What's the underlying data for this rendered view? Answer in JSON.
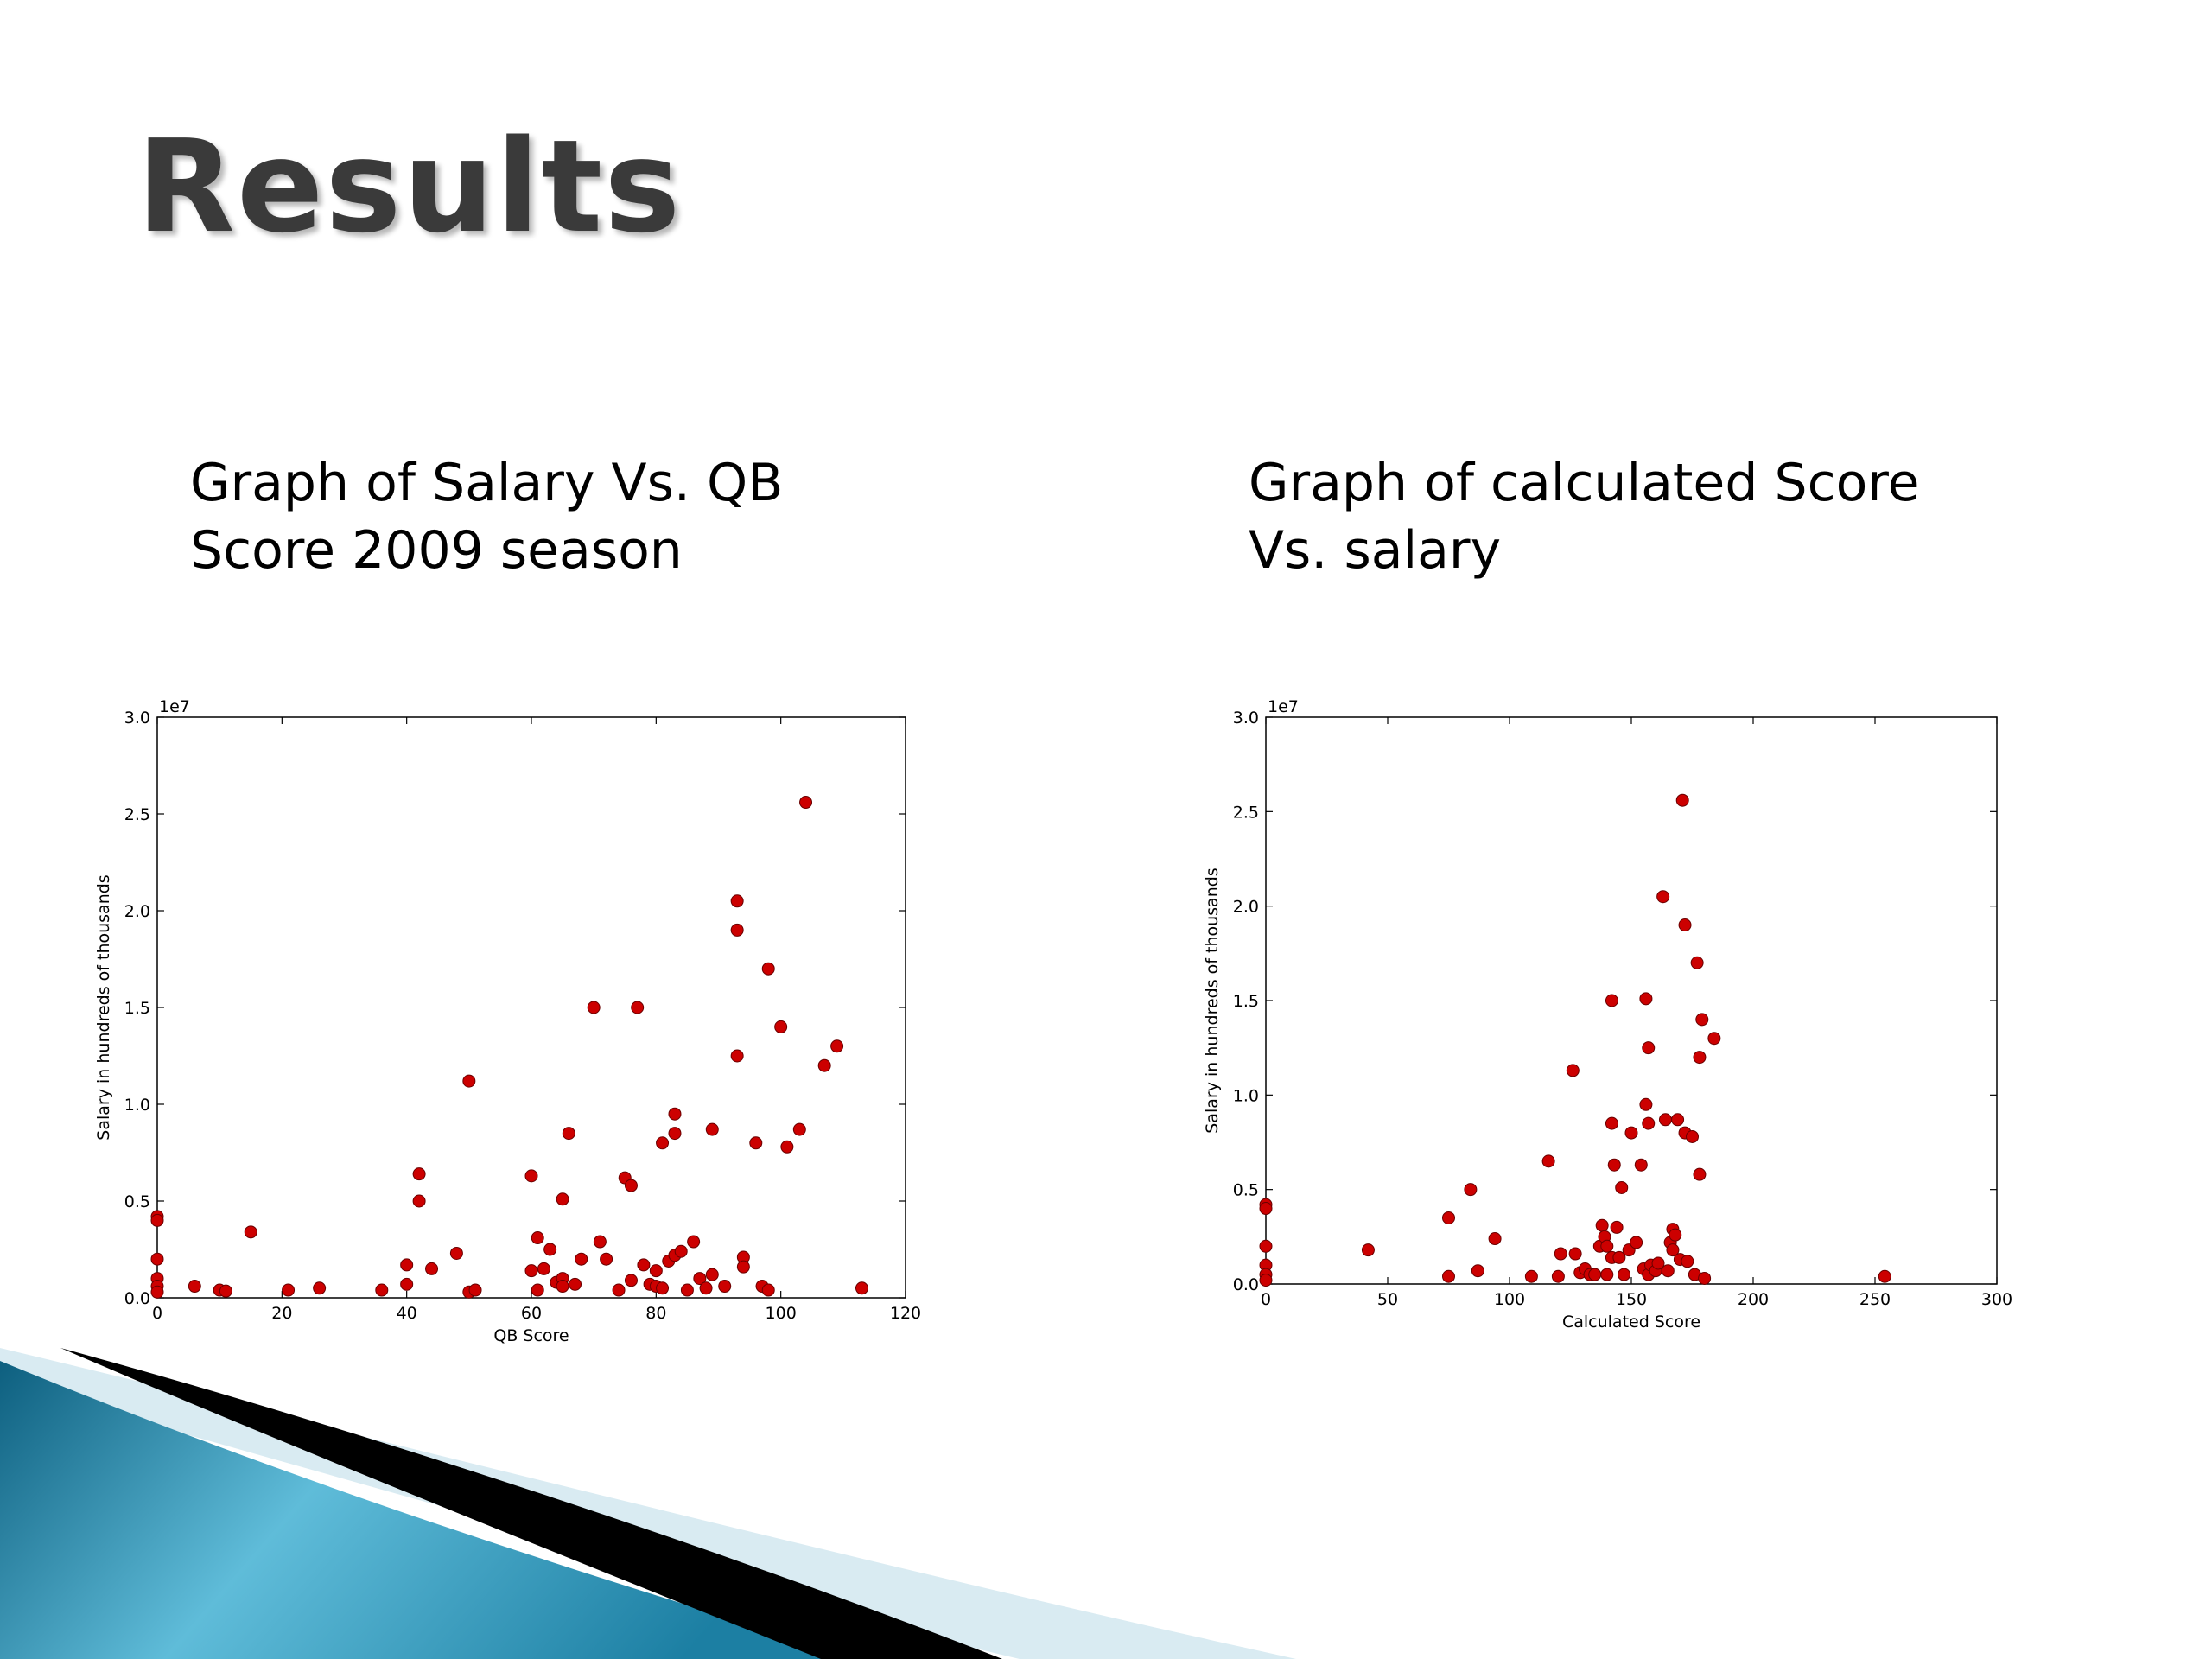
{
  "slide": {
    "title": "Results",
    "caption_left": "Graph of Salary Vs. QB Score 2009 season",
    "caption_right": "Graph of calculated Score Vs. salary",
    "accent_colors": {
      "point": "#cc0000",
      "teal": "#1c7fa3",
      "light_teal": "#5fbcd9",
      "pale": "#d9ebf2",
      "black": "#000000"
    }
  },
  "chart_data": [
    {
      "type": "scatter",
      "title": "",
      "xlabel": "QB Score",
      "ylabel": "Salary in hundreds of thousands",
      "y_offset_label": "1e7",
      "xlim": [
        0,
        120
      ],
      "ylim": [
        0,
        30000000
      ],
      "x_ticks": [
        0,
        20,
        40,
        60,
        80,
        100,
        120
      ],
      "x_tick_labels": [
        "0",
        "20",
        "40",
        "60",
        "80",
        "100",
        "120"
      ],
      "y_ticks": [
        0,
        5000000,
        10000000,
        15000000,
        20000000,
        25000000,
        30000000
      ],
      "y_tick_labels": [
        "0.0",
        "0.5",
        "1.0",
        "1.5",
        "2.0",
        "2.5",
        "3.0"
      ],
      "grid": false,
      "point_color": "#cc0000",
      "points": [
        [
          0,
          4200000
        ],
        [
          0,
          4000000
        ],
        [
          0,
          2000000
        ],
        [
          0,
          1000000
        ],
        [
          0,
          600000
        ],
        [
          0,
          300000
        ],
        [
          6,
          600000
        ],
        [
          10,
          400000
        ],
        [
          11,
          350000
        ],
        [
          15,
          3400000
        ],
        [
          21,
          400000
        ],
        [
          26,
          500000
        ],
        [
          36,
          400000
        ],
        [
          40,
          1700000
        ],
        [
          40,
          700000
        ],
        [
          42,
          6400000
        ],
        [
          42,
          5000000
        ],
        [
          44,
          1500000
        ],
        [
          48,
          2300000
        ],
        [
          50,
          11200000
        ],
        [
          50,
          300000
        ],
        [
          51,
          400000
        ],
        [
          60,
          6300000
        ],
        [
          60,
          1400000
        ],
        [
          61,
          3100000
        ],
        [
          61,
          400000
        ],
        [
          62,
          1500000
        ],
        [
          63,
          2500000
        ],
        [
          64,
          800000
        ],
        [
          65,
          5100000
        ],
        [
          65,
          1000000
        ],
        [
          65,
          600000
        ],
        [
          66,
          8500000
        ],
        [
          67,
          700000
        ],
        [
          68,
          2000000
        ],
        [
          70,
          15000000
        ],
        [
          71,
          2900000
        ],
        [
          72,
          2000000
        ],
        [
          74,
          400000
        ],
        [
          75,
          6200000
        ],
        [
          76,
          5800000
        ],
        [
          76,
          900000
        ],
        [
          77,
          15000000
        ],
        [
          78,
          1700000
        ],
        [
          79,
          700000
        ],
        [
          80,
          1400000
        ],
        [
          80,
          600000
        ],
        [
          81,
          8000000
        ],
        [
          81,
          500000
        ],
        [
          82,
          1900000
        ],
        [
          83,
          8500000
        ],
        [
          83,
          9500000
        ],
        [
          83,
          2200000
        ],
        [
          84,
          2400000
        ],
        [
          85,
          400000
        ],
        [
          86,
          2900000
        ],
        [
          87,
          1000000
        ],
        [
          88,
          500000
        ],
        [
          89,
          8700000
        ],
        [
          89,
          1200000
        ],
        [
          91,
          600000
        ],
        [
          93,
          20500000
        ],
        [
          93,
          19000000
        ],
        [
          93,
          12500000
        ],
        [
          94,
          2100000
        ],
        [
          94,
          1600000
        ],
        [
          96,
          8000000
        ],
        [
          97,
          600000
        ],
        [
          98,
          17000000
        ],
        [
          98,
          400000
        ],
        [
          100,
          14000000
        ],
        [
          101,
          7800000
        ],
        [
          103,
          8700000
        ],
        [
          104,
          25600000
        ],
        [
          107,
          12000000
        ],
        [
          109,
          13000000
        ],
        [
          113,
          500000
        ]
      ]
    },
    {
      "type": "scatter",
      "title": "",
      "xlabel": "Calculated Score",
      "ylabel": "Salary in hundreds of thousands",
      "y_offset_label": "1e7",
      "xlim": [
        0,
        300
      ],
      "ylim": [
        0,
        30000000
      ],
      "x_ticks": [
        0,
        50,
        100,
        150,
        200,
        250,
        300
      ],
      "x_tick_labels": [
        "0",
        "50",
        "100",
        "150",
        "200",
        "250",
        "300"
      ],
      "y_ticks": [
        0,
        5000000,
        10000000,
        15000000,
        20000000,
        25000000,
        30000000
      ],
      "y_tick_labels": [
        "0.0",
        "0.5",
        "1.0",
        "1.5",
        "2.0",
        "2.5",
        "3.0"
      ],
      "grid": false,
      "point_color": "#cc0000",
      "points": [
        [
          0,
          4200000
        ],
        [
          0,
          4000000
        ],
        [
          0,
          2000000
        ],
        [
          0,
          1000000
        ],
        [
          0,
          500000
        ],
        [
          0,
          200000
        ],
        [
          42,
          1800000
        ],
        [
          75,
          3500000
        ],
        [
          75,
          400000
        ],
        [
          84,
          5000000
        ],
        [
          87,
          700000
        ],
        [
          94,
          2400000
        ],
        [
          109,
          400000
        ],
        [
          116,
          6500000
        ],
        [
          120,
          400000
        ],
        [
          121,
          1600000
        ],
        [
          126,
          11300000
        ],
        [
          127,
          1600000
        ],
        [
          129,
          600000
        ],
        [
          131,
          800000
        ],
        [
          133,
          500000
        ],
        [
          135,
          500000
        ],
        [
          137,
          2000000
        ],
        [
          138,
          3100000
        ],
        [
          139,
          2500000
        ],
        [
          140,
          2000000
        ],
        [
          140,
          500000
        ],
        [
          142,
          15000000
        ],
        [
          142,
          8500000
        ],
        [
          142,
          1400000
        ],
        [
          143,
          6300000
        ],
        [
          144,
          3000000
        ],
        [
          145,
          1400000
        ],
        [
          146,
          5100000
        ],
        [
          147,
          500000
        ],
        [
          149,
          1800000
        ],
        [
          150,
          8000000
        ],
        [
          152,
          2200000
        ],
        [
          154,
          6300000
        ],
        [
          155,
          800000
        ],
        [
          156,
          15100000
        ],
        [
          156,
          9500000
        ],
        [
          157,
          12500000
        ],
        [
          157,
          8500000
        ],
        [
          157,
          500000
        ],
        [
          158,
          1000000
        ],
        [
          160,
          700000
        ],
        [
          161,
          1100000
        ],
        [
          163,
          20500000
        ],
        [
          164,
          8700000
        ],
        [
          165,
          700000
        ],
        [
          166,
          2200000
        ],
        [
          167,
          1800000
        ],
        [
          167,
          2900000
        ],
        [
          168,
          2600000
        ],
        [
          169,
          8700000
        ],
        [
          170,
          1300000
        ],
        [
          171,
          25600000
        ],
        [
          172,
          19000000
        ],
        [
          172,
          8000000
        ],
        [
          173,
          1200000
        ],
        [
          175,
          7800000
        ],
        [
          176,
          500000
        ],
        [
          177,
          17000000
        ],
        [
          178,
          12000000
        ],
        [
          178,
          5800000
        ],
        [
          179,
          14000000
        ],
        [
          180,
          300000
        ],
        [
          184,
          13000000
        ],
        [
          254,
          400000
        ]
      ]
    }
  ]
}
